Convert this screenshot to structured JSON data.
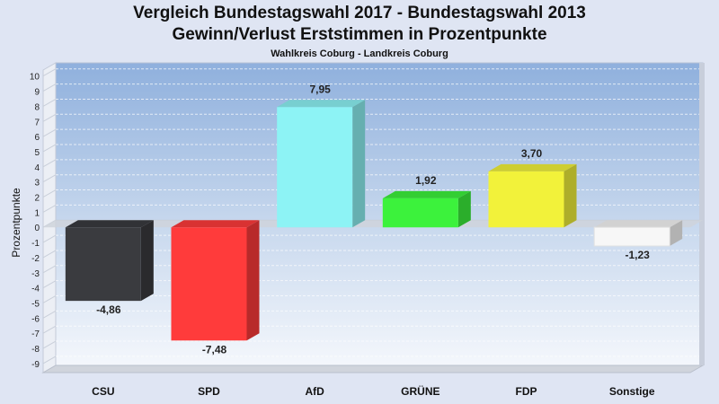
{
  "title": "Vergleich Bundestagswahl 2017 - Bundestagswahl 2013",
  "subtitle": "Gewinn/Verlust Erststimmen in Prozentpunkte",
  "subsubtitle": "Wahlkreis Coburg - Landkreis Coburg",
  "chart_data": {
    "type": "bar",
    "title": "Vergleich Bundestagswahl 2017 - Bundestagswahl 2013",
    "subtitle": "Gewinn/Verlust Erststimmen in Prozentpunkte",
    "ylabel": "Prozentpunkte",
    "xlabel": "",
    "ylim": [
      -9,
      10
    ],
    "yticks": [
      10,
      9,
      8,
      7,
      6,
      5,
      4,
      3,
      2,
      1,
      0,
      -1,
      -2,
      -3,
      -4,
      -5,
      -6,
      -7,
      -8,
      -9
    ],
    "grid": true,
    "categories": [
      "CSU",
      "SPD",
      "AfD",
      "GRÜNE",
      "FDP",
      "Sonstige"
    ],
    "values": [
      -4.86,
      -7.48,
      7.95,
      1.92,
      3.7,
      -1.23
    ],
    "value_labels": [
      "-4,86",
      "-7,48",
      "7,95",
      "1,92",
      "3,70",
      "-1,23"
    ],
    "colors": [
      "#3a3b3f",
      "#ff3b3b",
      "#8df3f5",
      "#3cf23c",
      "#f2f23a",
      "#f7f7f7"
    ]
  }
}
